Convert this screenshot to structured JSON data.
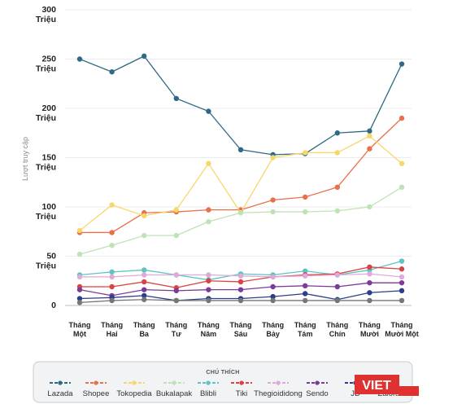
{
  "chart_data": {
    "type": "line",
    "ylabel": "Lượt truy cập",
    "ylim": [
      0,
      300
    ],
    "y_ticks": [
      {
        "value": 0,
        "lines": [
          "0"
        ]
      },
      {
        "value": 50,
        "lines": [
          "50",
          "Triệu"
        ]
      },
      {
        "value": 100,
        "lines": [
          "100",
          "Triệu"
        ]
      },
      {
        "value": 150,
        "lines": [
          "150",
          "Triệu"
        ]
      },
      {
        "value": 200,
        "lines": [
          "200",
          "Triệu"
        ]
      },
      {
        "value": 250,
        "lines": [
          "250",
          "Triệu"
        ]
      },
      {
        "value": 300,
        "lines": [
          "300",
          "Triệu"
        ]
      }
    ],
    "categories": [
      [
        "Tháng",
        "Một"
      ],
      [
        "Tháng",
        "Hai"
      ],
      [
        "Tháng",
        "Ba"
      ],
      [
        "Tháng",
        "Tư"
      ],
      [
        "Tháng",
        "Năm"
      ],
      [
        "Tháng",
        "Sáu"
      ],
      [
        "Tháng",
        "Bảy"
      ],
      [
        "Tháng",
        "Tám"
      ],
      [
        "Tháng",
        "Chín"
      ],
      [
        "Tháng",
        "Mười"
      ],
      [
        "Tháng",
        "Mười Một"
      ]
    ],
    "grid": true,
    "legend": {
      "title": "CHÚ THÍCH",
      "placement": "bottom"
    },
    "series": [
      {
        "name": "Lazada",
        "color": "#2e6a85",
        "values": [
          250,
          237,
          253,
          210,
          197,
          158,
          153,
          154,
          175,
          177,
          245
        ]
      },
      {
        "name": "Shopee",
        "color": "#e8704a",
        "values": [
          74,
          74,
          94,
          95,
          97,
          97,
          107,
          110,
          120,
          159,
          190
        ]
      },
      {
        "name": "Tokopedia",
        "color": "#f8d76a",
        "values": [
          76,
          102,
          91,
          97,
          144,
          94,
          150,
          155,
          155,
          172,
          144
        ]
      },
      {
        "name": "Bukalapak",
        "color": "#bfe3b6",
        "values": [
          52,
          61,
          71,
          71,
          85,
          94,
          95,
          95,
          96,
          100,
          120
        ]
      },
      {
        "name": "Blibli",
        "color": "#5ec3c3",
        "values": [
          31,
          34,
          36,
          31,
          26,
          32,
          31,
          35,
          31,
          36,
          45
        ]
      },
      {
        "name": "Tiki",
        "color": "#d94343",
        "values": [
          19,
          19,
          24,
          18,
          25,
          24,
          29,
          31,
          32,
          39,
          37
        ]
      },
      {
        "name": "Thegioididong",
        "color": "#dfa9d9",
        "values": [
          29,
          29,
          31,
          31,
          31,
          30,
          29,
          30,
          31,
          32,
          29
        ]
      },
      {
        "name": "Sendo",
        "color": "#7b3b97",
        "values": [
          16,
          10,
          16,
          15,
          16,
          16,
          19,
          20,
          19,
          23,
          23
        ]
      },
      {
        "name": "JD",
        "color": "#2c3e8a",
        "values": [
          7,
          8,
          10,
          5,
          7,
          7,
          9,
          12,
          6,
          13,
          15
        ]
      },
      {
        "name": "Zalora",
        "color": "#777777",
        "values": [
          3,
          5,
          6,
          5,
          5,
          5,
          5,
          5,
          5,
          5,
          5
        ]
      }
    ]
  },
  "watermark": {
    "text": "VIET",
    "color": "#e03131"
  }
}
